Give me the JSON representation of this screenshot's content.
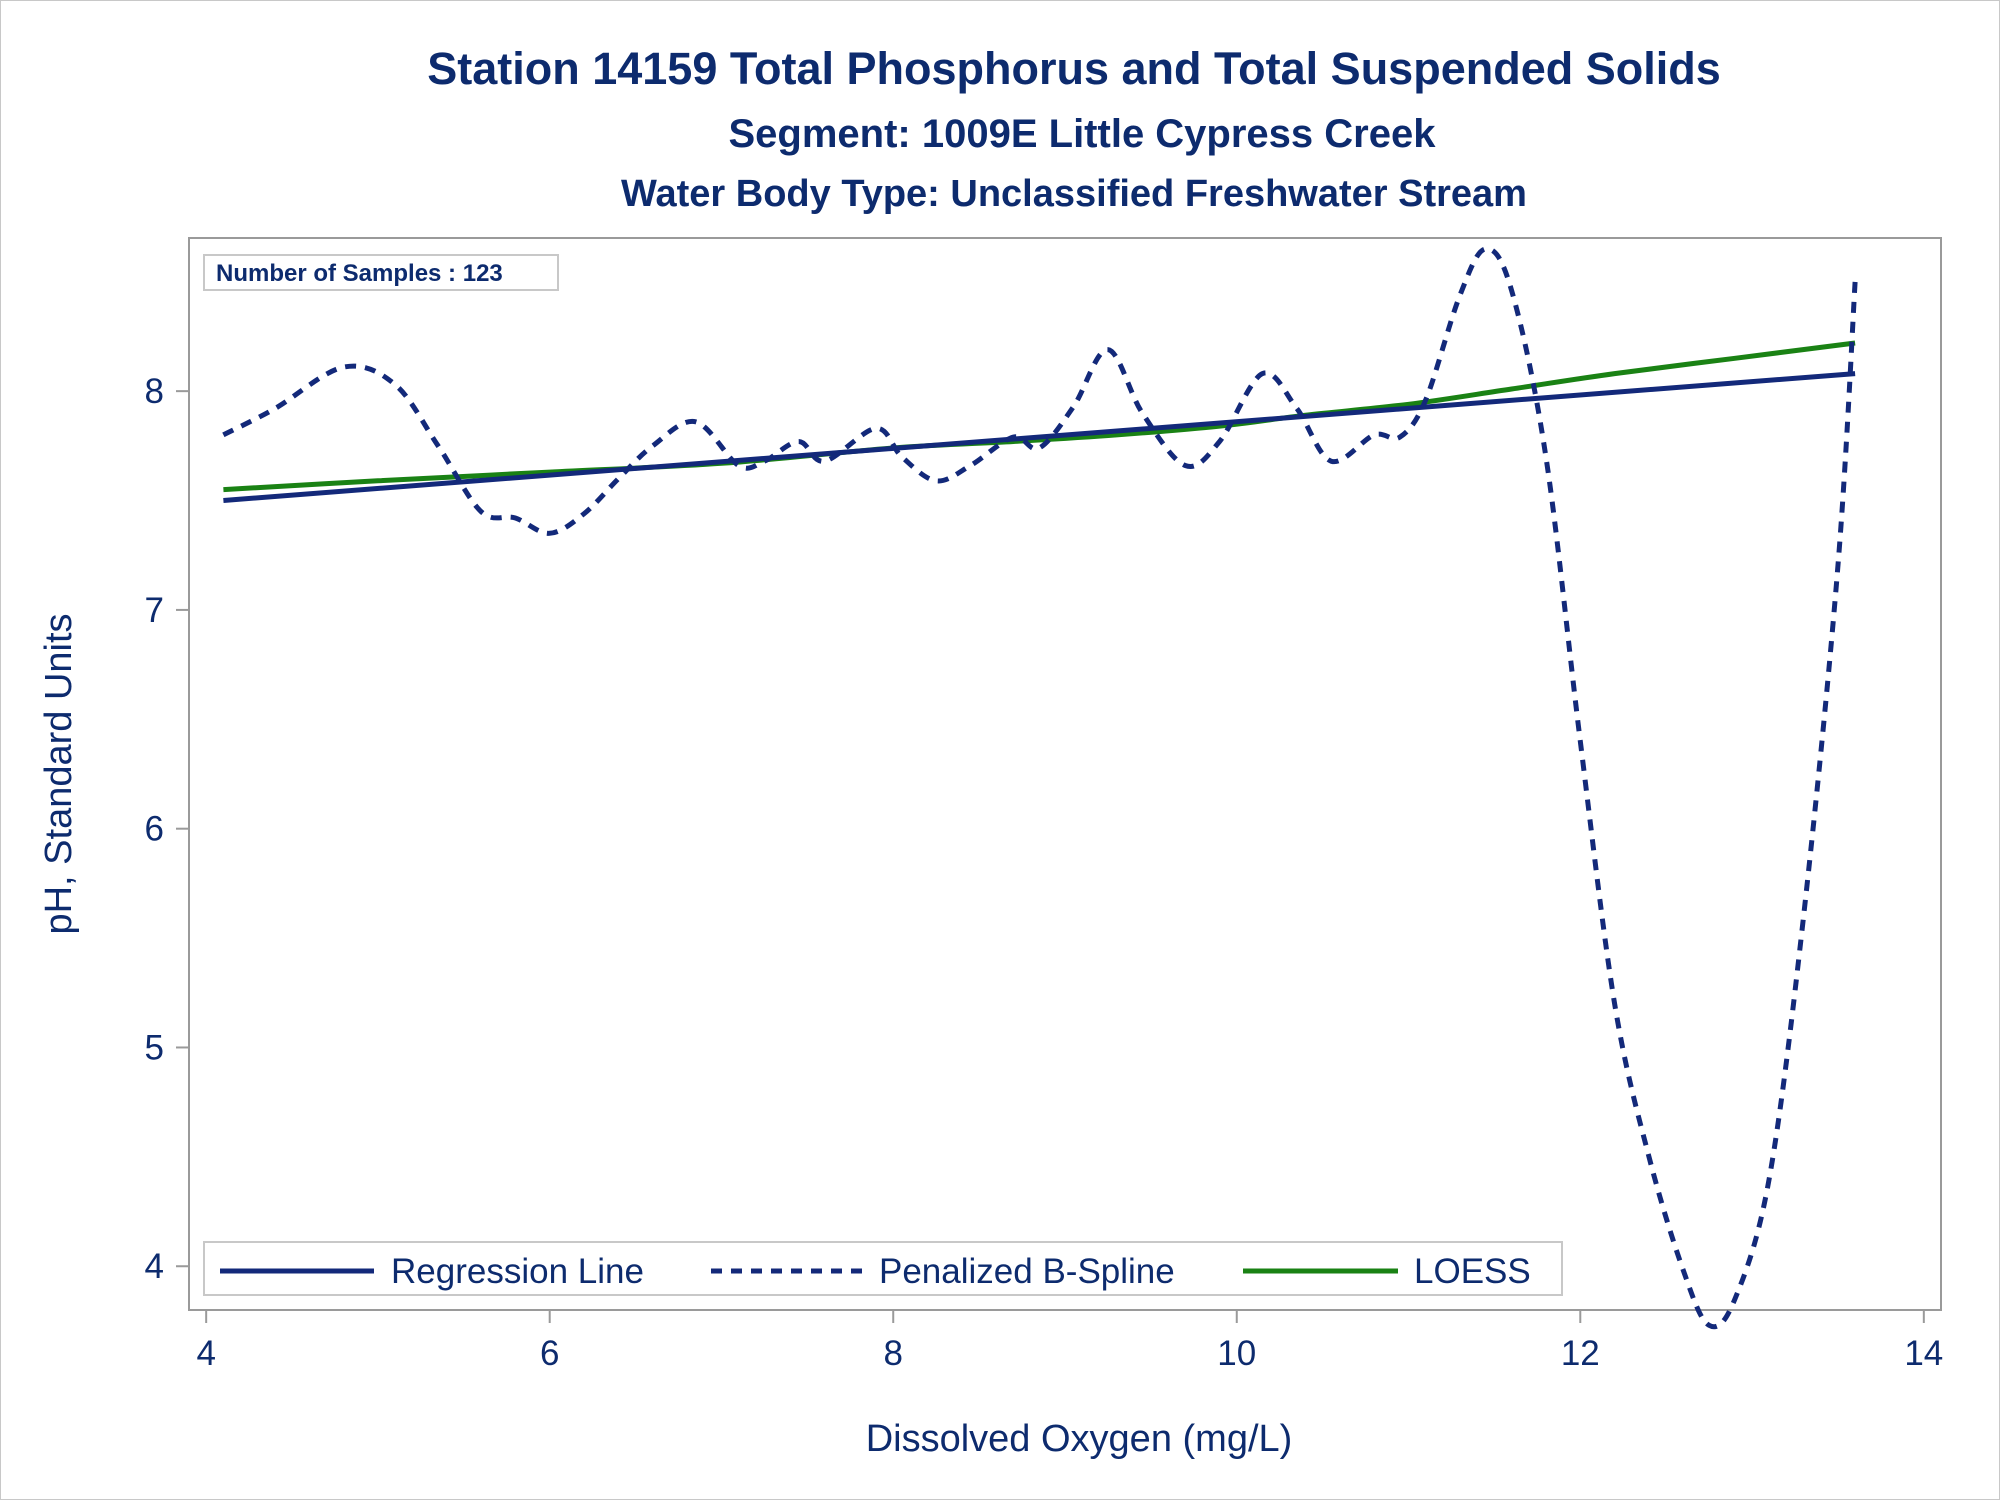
{
  "chart_data": {
    "type": "line",
    "title": "Station 14159  Total Phosphorus and Total Suspended Solids",
    "subtitle": "Segment: 1009E  Little Cypress Creek",
    "subtitle2": "Water Body Type: Unclassified Freshwater Stream",
    "annotation": "Number of Samples : 123",
    "xlabel": "Dissolved Oxygen (mg/L)",
    "ylabel": "pH, Standard Units",
    "xlim": [
      3.9,
      14.1
    ],
    "ylim": [
      3.8,
      8.7
    ],
    "xticks": [
      4,
      6,
      8,
      10,
      12,
      14
    ],
    "yticks": [
      4,
      5,
      6,
      7,
      8
    ],
    "grid": false,
    "legend_placement": "bottom-left inside",
    "colors": {
      "text": "#0d2b6e",
      "regression": "#13297a",
      "spline": "#13297a",
      "loess": "#1a8214",
      "axis": "#9a9a9a"
    },
    "series": [
      {
        "name": "Regression Line",
        "style": "solid",
        "x": [
          4.1,
          13.6
        ],
        "y": [
          7.5,
          8.08
        ]
      },
      {
        "name": "Penalized B-Spline",
        "style": "dashed",
        "x": [
          4.1,
          4.4,
          4.8,
          5.1,
          5.35,
          5.6,
          5.8,
          6.0,
          6.2,
          6.4,
          6.6,
          6.85,
          7.1,
          7.25,
          7.45,
          7.6,
          7.9,
          8.05,
          8.25,
          8.45,
          8.7,
          8.85,
          9.05,
          9.25,
          9.45,
          9.7,
          9.9,
          10.15,
          10.35,
          10.55,
          10.8,
          10.95,
          11.1,
          11.3,
          11.45,
          11.6,
          11.8,
          12.0,
          12.2,
          12.4,
          12.6,
          12.75,
          12.9,
          13.1,
          13.3,
          13.5,
          13.6
        ],
        "y": [
          7.8,
          7.92,
          8.11,
          8.03,
          7.75,
          7.45,
          7.42,
          7.35,
          7.44,
          7.6,
          7.75,
          7.86,
          7.66,
          7.68,
          7.77,
          7.68,
          7.83,
          7.7,
          7.59,
          7.66,
          7.79,
          7.74,
          7.93,
          8.19,
          7.9,
          7.66,
          7.77,
          8.08,
          7.92,
          7.68,
          7.8,
          7.79,
          7.96,
          8.44,
          8.65,
          8.46,
          7.7,
          6.4,
          5.2,
          4.5,
          3.98,
          3.73,
          3.85,
          4.4,
          5.6,
          7.2,
          8.5
        ]
      },
      {
        "name": "LOESS",
        "style": "solid",
        "x": [
          4.1,
          5.0,
          6.0,
          7.0,
          8.0,
          8.7,
          9.3,
          9.9,
          10.4,
          11.0,
          11.6,
          12.2,
          12.9,
          13.6
        ],
        "y": [
          7.55,
          7.59,
          7.63,
          7.67,
          7.74,
          7.77,
          7.8,
          7.84,
          7.89,
          7.94,
          8.01,
          8.08,
          8.15,
          8.22
        ]
      }
    ]
  }
}
